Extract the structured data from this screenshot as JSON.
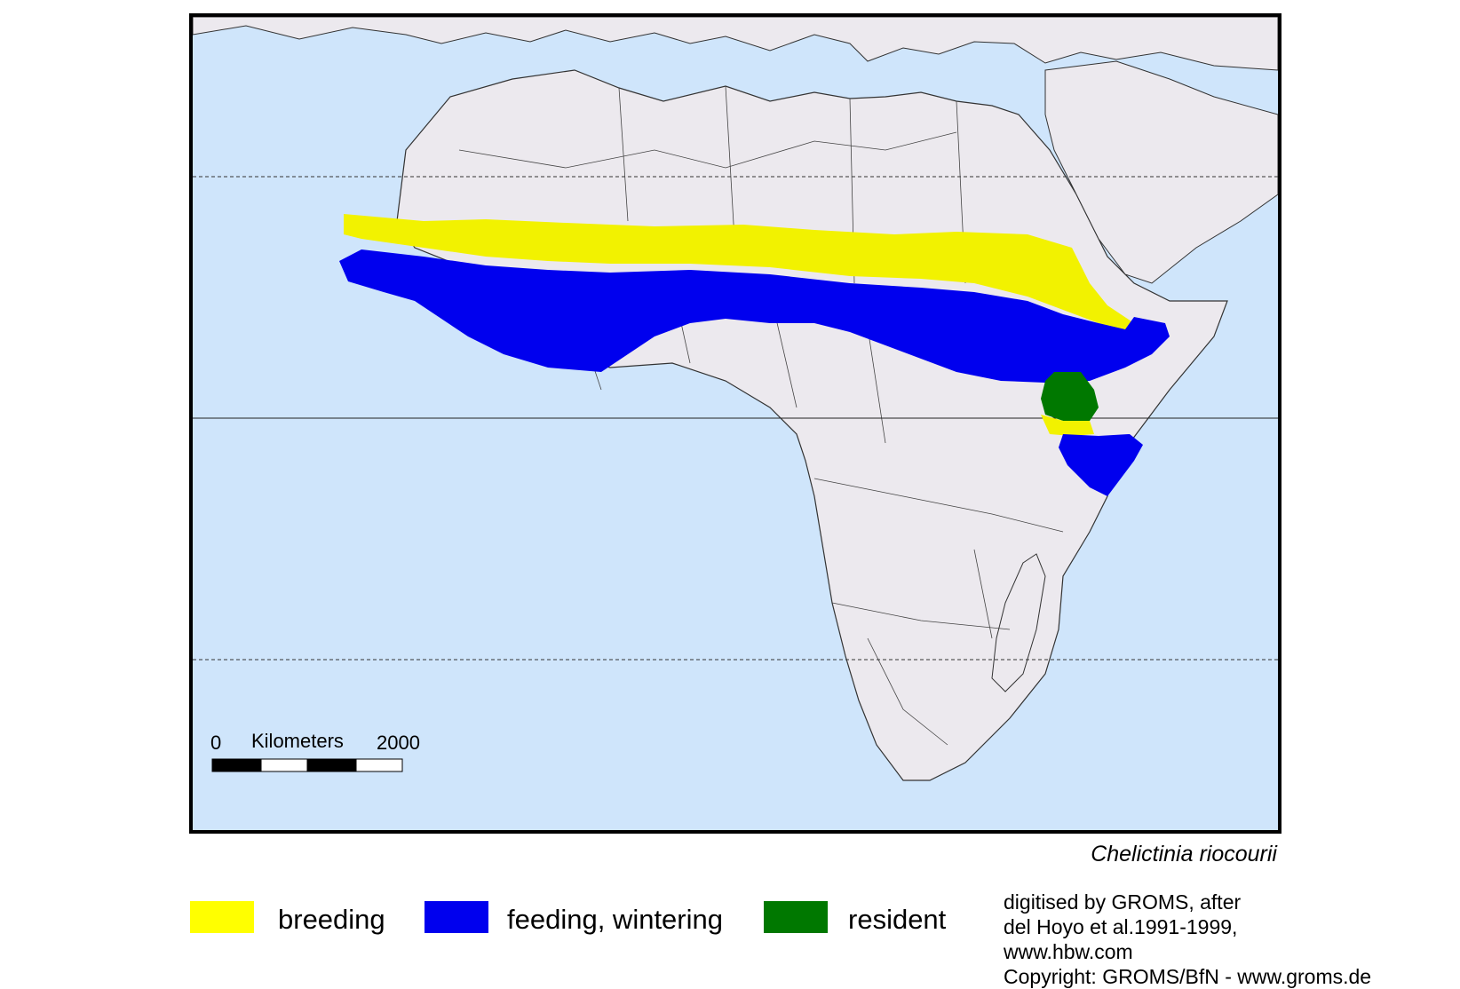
{
  "map": {
    "species": "Chelictinia riocourii",
    "scale_bar": {
      "start_label": "0",
      "unit_label": "Kilometers",
      "end_label": "2000"
    },
    "colors": {
      "ocean": "#cfe5fb",
      "land": "#ece9ee",
      "breeding": "#f2f200",
      "feeding_wintering": "#0000ee",
      "resident": "#007800"
    }
  },
  "legend": {
    "items": [
      {
        "label": "breeding",
        "color": "#ffff00"
      },
      {
        "label": "feeding, wintering",
        "color": "#0000ee"
      },
      {
        "label": "resident",
        "color": "#007800"
      }
    ]
  },
  "credits": {
    "lines": [
      "digitised by GROMS, after",
      "del Hoyo et al.1991-1999,",
      "www.hbw.com",
      "Copyright: GROMS/BfN - www.groms.de"
    ]
  }
}
